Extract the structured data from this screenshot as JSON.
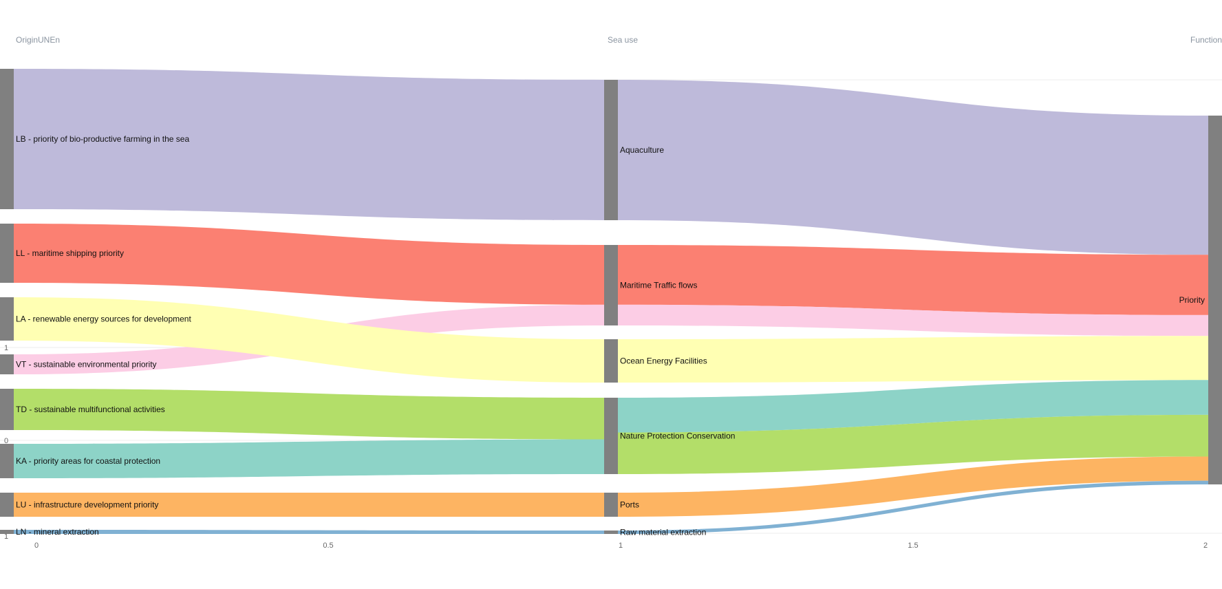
{
  "chart_data": {
    "type": "sankey",
    "columns": [
      "OriginUNEn",
      "Sea use",
      "Function"
    ],
    "x_ticks": [
      "0",
      "0.5",
      "1",
      "1.5",
      "2"
    ],
    "y_ticks": [
      "1",
      "0",
      "1"
    ],
    "nodes": {
      "origin": [
        {
          "id": "LB",
          "label": "LB - priority of bio-productive farming in the sea"
        },
        {
          "id": "LL",
          "label": "LL - maritime shipping priority"
        },
        {
          "id": "LA",
          "label": "LA - renewable energy sources for development"
        },
        {
          "id": "VT",
          "label": "VT - sustainable environmental priority"
        },
        {
          "id": "TD",
          "label": "TD - sustainable multifunctional activities"
        },
        {
          "id": "KA",
          "label": "KA - priority areas for coastal protection"
        },
        {
          "id": "LU",
          "label": "LU - infrastructure development priority"
        },
        {
          "id": "LN",
          "label": "LN - mineral extraction"
        }
      ],
      "sea_use": [
        {
          "id": "AQ",
          "label": "Aquaculture"
        },
        {
          "id": "MT",
          "label": "Maritime Traffic flows"
        },
        {
          "id": "OE",
          "label": "Ocean Energy Facilities"
        },
        {
          "id": "NP",
          "label": "Nature Protection Conservation"
        },
        {
          "id": "PO",
          "label": "Ports"
        },
        {
          "id": "RM",
          "label": "Raw material extraction"
        }
      ],
      "function": [
        {
          "id": "PR",
          "label": "Priority"
        }
      ]
    },
    "links": [
      {
        "source": "LB",
        "target": "AQ",
        "value": 30,
        "color": "#bebada"
      },
      {
        "source": "LL",
        "target": "MT",
        "value": 13,
        "color": "#fb8072"
      },
      {
        "source": "VT",
        "target": "MT",
        "value": 4.5,
        "color": "#fccde5"
      },
      {
        "source": "LA",
        "target": "OE",
        "value": 9.5,
        "color": "#ffffb3"
      },
      {
        "source": "TD",
        "target": "NP",
        "value": 9,
        "color": "#b3de69"
      },
      {
        "source": "KA",
        "target": "NP",
        "value": 7.5,
        "color": "#8dd3c7"
      },
      {
        "source": "LU",
        "target": "PO",
        "value": 5.2,
        "color": "#fdb462"
      },
      {
        "source": "LN",
        "target": "RM",
        "value": 0.8,
        "color": "#80b1d3"
      },
      {
        "source": "AQ",
        "target": "PR",
        "value": 30,
        "color": "#bebada"
      },
      {
        "source": "MT",
        "target": "PR",
        "value": 13,
        "color": "#fb8072"
      },
      {
        "source": "MT",
        "target": "PR",
        "value": 4.5,
        "color": "#fccde5"
      },
      {
        "source": "OE",
        "target": "PR",
        "value": 9.5,
        "color": "#ffffb3"
      },
      {
        "source": "NP",
        "target": "PR",
        "value": 7.5,
        "color": "#8dd3c7"
      },
      {
        "source": "NP",
        "target": "PR",
        "value": 9,
        "color": "#b3de69"
      },
      {
        "source": "PO",
        "target": "PR",
        "value": 5.2,
        "color": "#fdb462"
      },
      {
        "source": "RM",
        "target": "PR",
        "value": 0.8,
        "color": "#80b1d3"
      }
    ],
    "node_color": "#808080",
    "grid": true
  }
}
